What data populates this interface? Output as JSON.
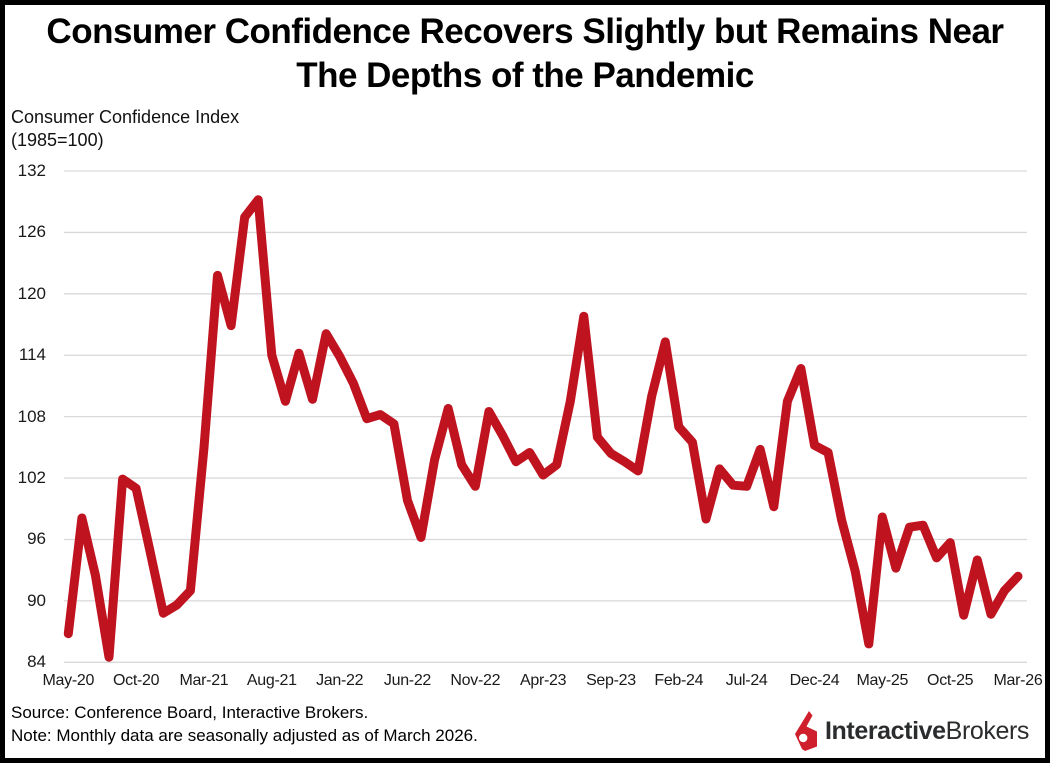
{
  "title": {
    "line1": "Consumer Confidence Recovers Slightly but Remains Near",
    "line2": "The Depths of the Pandemic"
  },
  "y_axis_label": {
    "line1": "Consumer Confidence Index",
    "line2": "(1985=100)"
  },
  "footer": {
    "source": "Source: Conference Board, Interactive Brokers.",
    "note": "Note: Monthly data are seasonally adjusted as of March 2026."
  },
  "logo": {
    "brand_bold": "Interactive",
    "brand_regular": "Brokers",
    "icon_color": "#cf1f2c",
    "text_color": "#2a2c2e"
  },
  "chart_data": {
    "type": "line",
    "title": "Consumer Confidence Recovers Slightly but Remains Near The Depths of the Pandemic",
    "ylabel": "Consumer Confidence Index (1985=100)",
    "xlabel": "",
    "ylim": [
      84,
      132
    ],
    "y_ticks": [
      84,
      90,
      96,
      102,
      108,
      114,
      120,
      126,
      132
    ],
    "x_tick_labels": [
      "May-20",
      "Oct-20",
      "Mar-21",
      "Aug-21",
      "Jan-22",
      "Jun-22",
      "Nov-22",
      "Apr-23",
      "Sep-23",
      "Feb-24",
      "Jul-24",
      "Dec-24",
      "May-25",
      "Oct-25",
      "Mar-26"
    ],
    "grid": true,
    "legend": false,
    "line_color": "#c01320",
    "grid_color": "#d9d9d9",
    "months": [
      "May-20",
      "Jun-20",
      "Jul-20",
      "Aug-20",
      "Sep-20",
      "Oct-20",
      "Nov-20",
      "Dec-20",
      "Jan-21",
      "Feb-21",
      "Mar-21",
      "Apr-21",
      "May-21",
      "Jun-21",
      "Jul-21",
      "Aug-21",
      "Sep-21",
      "Oct-21",
      "Nov-21",
      "Dec-21",
      "Jan-22",
      "Feb-22",
      "Mar-22",
      "Apr-22",
      "May-22",
      "Jun-22",
      "Jul-22",
      "Aug-22",
      "Sep-22",
      "Oct-22",
      "Nov-22",
      "Dec-22",
      "Jan-23",
      "Feb-23",
      "Mar-23",
      "Apr-23",
      "May-23",
      "Jun-23",
      "Jul-23",
      "Aug-23",
      "Sep-23",
      "Oct-23",
      "Nov-23",
      "Dec-23",
      "Jan-24",
      "Feb-24",
      "Mar-24",
      "Apr-24",
      "May-24",
      "Jun-24",
      "Jul-24",
      "Aug-24",
      "Sep-24",
      "Oct-24",
      "Nov-24",
      "Dec-24",
      "Jan-25",
      "Feb-25",
      "Mar-25",
      "Apr-25",
      "May-25",
      "Jun-25",
      "Jul-25",
      "Aug-25",
      "Sep-25",
      "Oct-25",
      "Nov-25",
      "Dec-25",
      "Jan-26",
      "Feb-26",
      "Mar-26"
    ],
    "values": [
      86.8,
      98.1,
      92.5,
      84.5,
      101.9,
      101.0,
      95.0,
      88.8,
      89.6,
      91.0,
      105.0,
      121.8,
      116.9,
      127.5,
      129.2,
      114.0,
      109.5,
      114.2,
      109.7,
      116.1,
      113.9,
      111.3,
      107.8,
      108.2,
      107.3,
      99.8,
      96.2,
      103.8,
      108.8,
      103.3,
      101.2,
      108.5,
      106.2,
      103.6,
      104.5,
      102.3,
      103.3,
      109.5,
      117.8,
      106.0,
      104.4,
      103.6,
      102.7,
      110.0,
      115.3,
      107.0,
      105.5,
      98.0,
      102.9,
      101.3,
      101.2,
      104.8,
      99.2,
      109.5,
      112.7,
      105.2,
      104.5,
      97.9,
      92.9,
      85.8,
      98.2,
      93.2,
      97.2,
      97.4,
      94.2,
      95.7,
      88.6,
      94.0,
      88.7,
      91.0,
      92.4
    ]
  }
}
